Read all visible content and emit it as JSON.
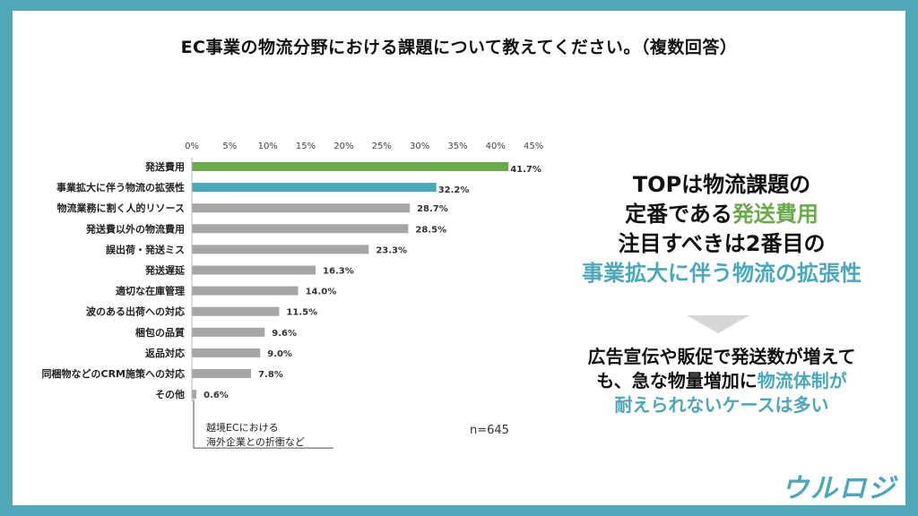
{
  "title": "EC事業の物流分野における課題について教えてください。（複数回答）",
  "chart_data": {
    "type": "bar",
    "orientation": "horizontal",
    "categories": [
      "発送費用",
      "事業拡大に伴う物流の拡張性",
      "物流業務に割く人的リソース",
      "発送費以外の物流費用",
      "誤出荷・発送ミス",
      "発送遅延",
      "適切な在庫管理",
      "波のある出荷への対応",
      "梱包の品質",
      "返品対応",
      "同梱物などのCRM施策への対応",
      "その他"
    ],
    "values": [
      41.7,
      32.2,
      28.7,
      28.5,
      23.3,
      16.3,
      14.0,
      11.5,
      9.6,
      9.0,
      7.8,
      0.6
    ],
    "value_labels": [
      "41.7%",
      "32.2%",
      "28.7%",
      "28.5%",
      "23.3%",
      "16.3%",
      "14.0%",
      "11.5%",
      "9.6%",
      "9.0%",
      "7.8%",
      "0.6%"
    ],
    "ticks": [
      0,
      5,
      10,
      15,
      20,
      25,
      30,
      35,
      40,
      45
    ],
    "tick_labels": [
      "0%",
      "5%",
      "10%",
      "15%",
      "20%",
      "25%",
      "30%",
      "35%",
      "40%",
      "45%"
    ],
    "xlim": [
      0,
      45
    ],
    "grid": false,
    "colors": [
      "#6aaa4a",
      "#4aa8b8",
      "#a6a6a6",
      "#a6a6a6",
      "#a6a6a6",
      "#a6a6a6",
      "#a6a6a6",
      "#a6a6a6",
      "#a6a6a6",
      "#a6a6a6",
      "#a6a6a6",
      "#a6a6a6"
    ],
    "highlight_label_colors": [
      "#5a8f3e",
      "#4aa8b8"
    ]
  },
  "n_label": "n=645",
  "note": {
    "line1": "越境ECにおける",
    "line2": "海外企業との折衝など"
  },
  "message": {
    "line1": "TOPは物流課題の",
    "line2_pre": "定番である",
    "line2_hl": "発送費用",
    "line3": "注目すべきは2番目の",
    "line4": "事業拡大に伴う物流の拡張性",
    "sub1": "広告宣伝や販促で発送数が増えて",
    "sub2_pre": "も、急な物量増加に",
    "sub2_hl": "物流体制が",
    "sub3": "耐えられないケースは多い"
  },
  "logo": "ウルロジ"
}
